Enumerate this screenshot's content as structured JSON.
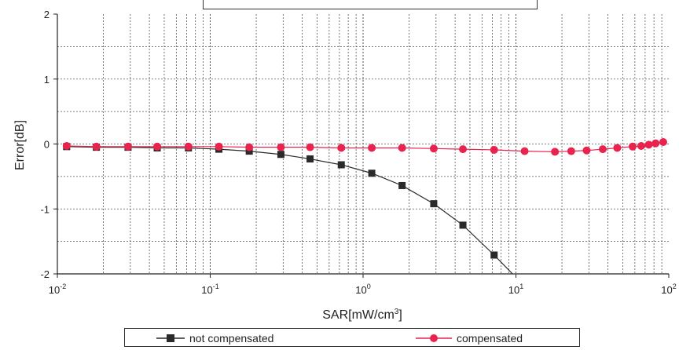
{
  "colors": {
    "not_compensated": "#2a2a2a",
    "compensated": "#e8234e",
    "grid": "#555555",
    "axis": "#222222"
  },
  "chart_data": {
    "type": "line",
    "title": "",
    "xlabel": "SAR[mW/cm³]",
    "ylabel": "Error[dB]",
    "xscale": "log",
    "xlim": [
      0.01,
      100
    ],
    "ylim": [
      -2,
      2
    ],
    "x_ticks": [
      {
        "base": "10",
        "exp": "-2",
        "value": 0.01
      },
      {
        "base": "10",
        "exp": "-1",
        "value": 0.1
      },
      {
        "base": "10",
        "exp": "0",
        "value": 1
      },
      {
        "base": "10",
        "exp": "1",
        "value": 10
      },
      {
        "base": "10",
        "exp": "2",
        "value": 100
      }
    ],
    "y_ticks": [
      "-2",
      "-1",
      "0",
      "1",
      "2"
    ],
    "y_tick_values": [
      -2,
      -1,
      0,
      1,
      2
    ],
    "grid": true,
    "legend_position": "bottom",
    "series": [
      {
        "name": "not compensated",
        "marker": "square",
        "x": [
          0.0115,
          0.018,
          0.029,
          0.045,
          0.072,
          0.114,
          0.18,
          0.29,
          0.45,
          0.72,
          1.14,
          1.8,
          2.9,
          4.5,
          7.2,
          9.5
        ],
        "y": [
          -0.04,
          -0.05,
          -0.05,
          -0.06,
          -0.06,
          -0.08,
          -0.11,
          -0.16,
          -0.23,
          -0.32,
          -0.45,
          -0.64,
          -0.92,
          -1.25,
          -1.71,
          -2.0
        ]
      },
      {
        "name": "compensated",
        "marker": "circle",
        "x": [
          0.0115,
          0.018,
          0.029,
          0.045,
          0.072,
          0.114,
          0.18,
          0.29,
          0.45,
          0.72,
          1.14,
          1.8,
          2.9,
          4.5,
          7.2,
          11.4,
          18,
          23,
          29,
          37,
          46,
          58,
          66,
          74,
          82,
          92
        ],
        "y": [
          -0.03,
          -0.04,
          -0.04,
          -0.04,
          -0.04,
          -0.04,
          -0.05,
          -0.05,
          -0.05,
          -0.06,
          -0.06,
          -0.06,
          -0.07,
          -0.08,
          -0.09,
          -0.11,
          -0.12,
          -0.11,
          -0.1,
          -0.08,
          -0.06,
          -0.04,
          -0.03,
          -0.01,
          0.01,
          0.03
        ]
      }
    ]
  }
}
